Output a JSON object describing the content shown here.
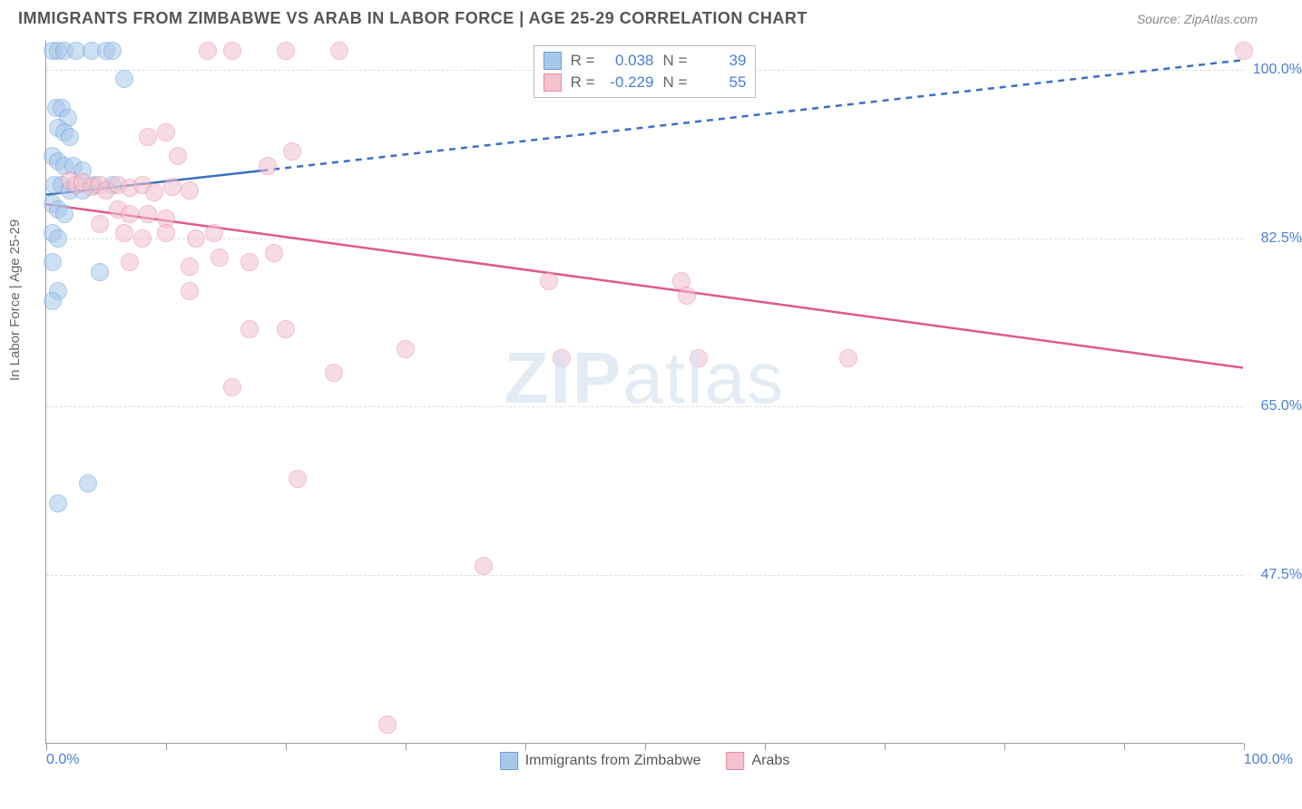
{
  "header": {
    "title": "IMMIGRANTS FROM ZIMBABWE VS ARAB IN LABOR FORCE | AGE 25-29 CORRELATION CHART",
    "source": "Source: ZipAtlas.com"
  },
  "ylabel": "In Labor Force | Age 25-29",
  "watermark": {
    "part1": "ZIP",
    "part2": "atlas"
  },
  "chart": {
    "type": "scatter",
    "background_color": "#ffffff",
    "grid_color": "#dddddd",
    "axis_color": "#999999",
    "label_color": "#4a7fd8",
    "xlim": [
      0,
      100
    ],
    "ylim": [
      30,
      103
    ],
    "xaxis_labels": {
      "left": "0.0%",
      "right": "100.0%"
    },
    "xticks": [
      0,
      10,
      20,
      30,
      40,
      50,
      60,
      70,
      80,
      90,
      100
    ],
    "ytick_labels": [
      {
        "value": 100.0,
        "label": "100.0%"
      },
      {
        "value": 82.5,
        "label": "82.5%"
      },
      {
        "value": 65.0,
        "label": "65.0%"
      },
      {
        "value": 47.5,
        "label": "47.5%"
      }
    ],
    "series": [
      {
        "name": "Immigrants from Zimbabwe",
        "fill_color": "#a7c7eb",
        "stroke_color": "#6a9fd8",
        "trend": {
          "solid_x0": 0,
          "solid_y0": 87.0,
          "solid_x1": 18,
          "solid_y1": 89.5,
          "dash_x1": 100,
          "dash_y1": 101.0,
          "color": "#3c6fc4",
          "width": 2.5
        },
        "stats": {
          "r_label": "R =",
          "r_value": "0.038",
          "n_label": "N =",
          "n_value": "39"
        },
        "points": [
          {
            "x": 0.5,
            "y": 102
          },
          {
            "x": 1,
            "y": 102
          },
          {
            "x": 1.5,
            "y": 102
          },
          {
            "x": 2.5,
            "y": 102
          },
          {
            "x": 3.8,
            "y": 102
          },
          {
            "x": 5,
            "y": 102
          },
          {
            "x": 5.5,
            "y": 102
          },
          {
            "x": 6.5,
            "y": 99
          },
          {
            "x": 0.8,
            "y": 96
          },
          {
            "x": 1.3,
            "y": 96
          },
          {
            "x": 1.8,
            "y": 95
          },
          {
            "x": 1,
            "y": 94
          },
          {
            "x": 1.5,
            "y": 93.5
          },
          {
            "x": 2,
            "y": 93
          },
          {
            "x": 0.5,
            "y": 91
          },
          {
            "x": 1,
            "y": 90.5
          },
          {
            "x": 1.5,
            "y": 90
          },
          {
            "x": 2.3,
            "y": 90
          },
          {
            "x": 3,
            "y": 89.5
          },
          {
            "x": 0.7,
            "y": 88
          },
          {
            "x": 1.3,
            "y": 88
          },
          {
            "x": 2,
            "y": 87.5
          },
          {
            "x": 3,
            "y": 87.5
          },
          {
            "x": 4,
            "y": 88
          },
          {
            "x": 5.5,
            "y": 88
          },
          {
            "x": 0.5,
            "y": 86
          },
          {
            "x": 1,
            "y": 85.5
          },
          {
            "x": 1.5,
            "y": 85
          },
          {
            "x": 0.5,
            "y": 83
          },
          {
            "x": 1,
            "y": 82.5
          },
          {
            "x": 0.5,
            "y": 80
          },
          {
            "x": 4.5,
            "y": 79
          },
          {
            "x": 1,
            "y": 77
          },
          {
            "x": 0.5,
            "y": 76
          },
          {
            "x": 3.5,
            "y": 57
          },
          {
            "x": 1,
            "y": 55
          }
        ]
      },
      {
        "name": "Arabs",
        "fill_color": "#f4c1ce",
        "stroke_color": "#e88aa3",
        "trend": {
          "solid_x0": 0,
          "solid_y0": 86.0,
          "solid_x1": 100,
          "solid_y1": 69.0,
          "color": "#e05a85",
          "width": 2.5
        },
        "stats": {
          "r_label": "R =",
          "r_value": "-0.229",
          "n_label": "N =",
          "n_value": "55"
        },
        "points": [
          {
            "x": 13.5,
            "y": 102
          },
          {
            "x": 15.5,
            "y": 102
          },
          {
            "x": 20,
            "y": 102
          },
          {
            "x": 24.5,
            "y": 102
          },
          {
            "x": 100,
            "y": 102
          },
          {
            "x": 8.5,
            "y": 93
          },
          {
            "x": 10,
            "y": 93.5
          },
          {
            "x": 11,
            "y": 91
          },
          {
            "x": 20.5,
            "y": 91.5
          },
          {
            "x": 18.5,
            "y": 90
          },
          {
            "x": 2,
            "y": 88.5
          },
          {
            "x": 2.5,
            "y": 88
          },
          {
            "x": 3,
            "y": 88.3
          },
          {
            "x": 3.8,
            "y": 87.8
          },
          {
            "x": 4.5,
            "y": 88
          },
          {
            "x": 5,
            "y": 87.5
          },
          {
            "x": 6,
            "y": 88
          },
          {
            "x": 7,
            "y": 87.7
          },
          {
            "x": 8,
            "y": 88
          },
          {
            "x": 9,
            "y": 87.3
          },
          {
            "x": 10.5,
            "y": 87.8
          },
          {
            "x": 12,
            "y": 87.5
          },
          {
            "x": 6,
            "y": 85.5
          },
          {
            "x": 7,
            "y": 85
          },
          {
            "x": 8.5,
            "y": 85
          },
          {
            "x": 10,
            "y": 84.5
          },
          {
            "x": 4.5,
            "y": 84
          },
          {
            "x": 6.5,
            "y": 83
          },
          {
            "x": 8,
            "y": 82.5
          },
          {
            "x": 10,
            "y": 83
          },
          {
            "x": 12.5,
            "y": 82.5
          },
          {
            "x": 14,
            "y": 83
          },
          {
            "x": 7,
            "y": 80
          },
          {
            "x": 12,
            "y": 79.5
          },
          {
            "x": 14.5,
            "y": 80.5
          },
          {
            "x": 17,
            "y": 80
          },
          {
            "x": 19,
            "y": 81
          },
          {
            "x": 12,
            "y": 77
          },
          {
            "x": 42,
            "y": 78
          },
          {
            "x": 53,
            "y": 78
          },
          {
            "x": 53.5,
            "y": 76.5
          },
          {
            "x": 17,
            "y": 73
          },
          {
            "x": 20,
            "y": 73
          },
          {
            "x": 30,
            "y": 71
          },
          {
            "x": 43,
            "y": 70
          },
          {
            "x": 54.5,
            "y": 70
          },
          {
            "x": 67,
            "y": 70
          },
          {
            "x": 15.5,
            "y": 67
          },
          {
            "x": 24,
            "y": 68.5
          },
          {
            "x": 21,
            "y": 57.5
          },
          {
            "x": 36.5,
            "y": 48.5
          },
          {
            "x": 28.5,
            "y": 32
          }
        ]
      }
    ]
  }
}
